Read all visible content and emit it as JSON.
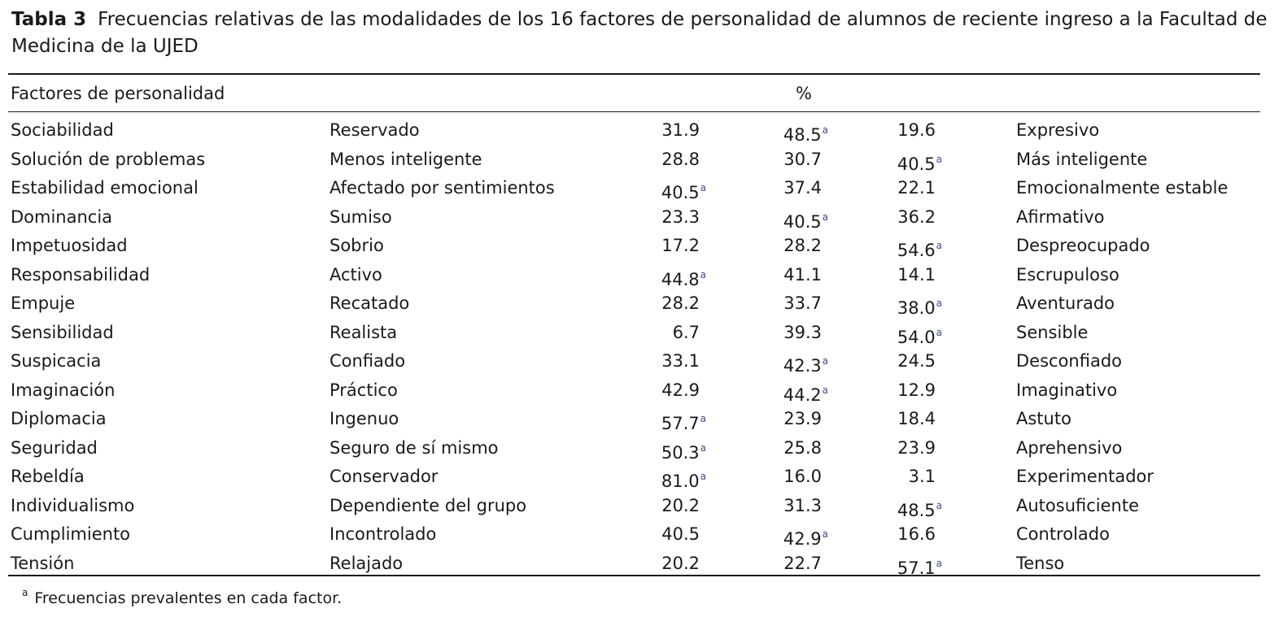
{
  "caption": {
    "label": "Tabla 3",
    "text": "Frecuencias relativas de las modalidades de los 16 factores de personalidad de alumnos de reciente ingreso a la Facultad de Medicina de la UJED"
  },
  "header": {
    "factor": "Factores de personalidad",
    "percent": "%"
  },
  "rows": [
    {
      "factor": "Sociabilidad",
      "low": "Reservado",
      "v1": "31.9",
      "v2": "48.5",
      "v3": "19.6",
      "high": "Expresivo",
      "mark": "2"
    },
    {
      "factor": "Solución de problemas",
      "low": "Menos inteligente",
      "v1": "28.8",
      "v2": "30.7",
      "v3": "40.5",
      "high": "Más inteligente",
      "mark": "3"
    },
    {
      "factor": "Estabilidad emocional",
      "low": "Afectado por sentimientos",
      "v1": "40.5",
      "v2": "37.4",
      "v3": "22.1",
      "high": "Emocionalmente estable",
      "mark": "1"
    },
    {
      "factor": "Dominancia",
      "low": "Sumiso",
      "v1": "23.3",
      "v2": "40.5",
      "v3": "36.2",
      "high": "Afirmativo",
      "mark": "2"
    },
    {
      "factor": "Impetuosidad",
      "low": "Sobrio",
      "v1": "17.2",
      "v2": "28.2",
      "v3": "54.6",
      "high": "Despreocupado",
      "mark": "3"
    },
    {
      "factor": "Responsabilidad",
      "low": "Activo",
      "v1": "44.8",
      "v2": "41.1",
      "v3": "14.1",
      "high": "Escrupuloso",
      "mark": "1"
    },
    {
      "factor": "Empuje",
      "low": "Recatado",
      "v1": "28.2",
      "v2": "33.7",
      "v3": "38.0",
      "high": "Aventurado",
      "mark": "3"
    },
    {
      "factor": "Sensibilidad",
      "low": "Realista",
      "v1": "6.7",
      "v2": "39.3",
      "v3": "54.0",
      "high": "Sensible",
      "mark": "3"
    },
    {
      "factor": "Suspicacia",
      "low": "Confiado",
      "v1": "33.1",
      "v2": "42.3",
      "v3": "24.5",
      "high": "Desconfiado",
      "mark": "2"
    },
    {
      "factor": "Imaginación",
      "low": "Práctico",
      "v1": "42.9",
      "v2": "44.2",
      "v3": "12.9",
      "high": "Imaginativo",
      "mark": "2"
    },
    {
      "factor": "Diplomacia",
      "low": "Ingenuo",
      "v1": "57.7",
      "v2": "23.9",
      "v3": "18.4",
      "high": "Astuto",
      "mark": "1"
    },
    {
      "factor": "Seguridad",
      "low": "Seguro de sí mismo",
      "v1": "50.3",
      "v2": "25.8",
      "v3": "23.9",
      "high": "Aprehensivo",
      "mark": "1"
    },
    {
      "factor": "Rebeldía",
      "low": "Conservador",
      "v1": "81.0",
      "v2": "16.0",
      "v3": "3.1",
      "high": "Experimentador",
      "mark": "1"
    },
    {
      "factor": "Individualismo",
      "low": "Dependiente del grupo",
      "v1": "20.2",
      "v2": "31.3",
      "v3": "48.5",
      "high": "Autosuficiente",
      "mark": "3"
    },
    {
      "factor": "Cumplimiento",
      "low": "Incontrolado",
      "v1": "40.5",
      "v2": "42.9",
      "v3": "16.6",
      "high": "Controlado",
      "mark": "2"
    },
    {
      "factor": "Tensión",
      "low": "Relajado",
      "v1": "20.2",
      "v2": "22.7",
      "v3": "57.1",
      "high": "Tenso",
      "mark": "3"
    }
  ],
  "footnote": {
    "mark": "a",
    "text": "Frecuencias prevalentes en cada factor."
  }
}
